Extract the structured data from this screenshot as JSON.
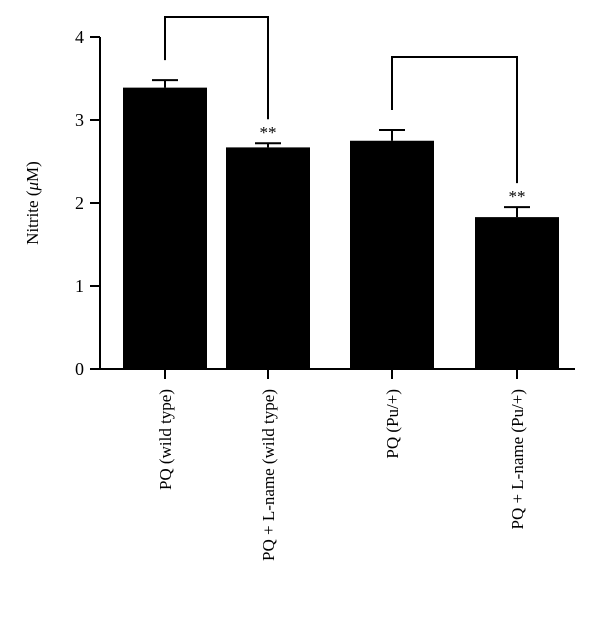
{
  "chart_data": {
    "type": "bar",
    "title": "",
    "xlabel": "",
    "ylabel": "Nitrite (μM)",
    "ylabel_parts": {
      "prefix": "Nitrite (",
      "unit": "μ",
      "suffix": "M)"
    },
    "ylim": [
      0,
      4
    ],
    "yticks": [
      0,
      1,
      2,
      3,
      4
    ],
    "categories": [
      "PQ (wild type)",
      "PQ + L-name (wild type)",
      "PQ (Pu/+)",
      "PQ + L-name (Pu/+)"
    ],
    "values": [
      3.39,
      2.67,
      2.75,
      1.83
    ],
    "errors": [
      0.09,
      0.05,
      0.13,
      0.12
    ],
    "significance": [
      "",
      "**",
      "",
      "**"
    ],
    "comparisons": [
      {
        "from": 0,
        "to": 1,
        "label": ""
      },
      {
        "from": 2,
        "to": 3,
        "label": ""
      }
    ],
    "bar_color": "#000000"
  }
}
